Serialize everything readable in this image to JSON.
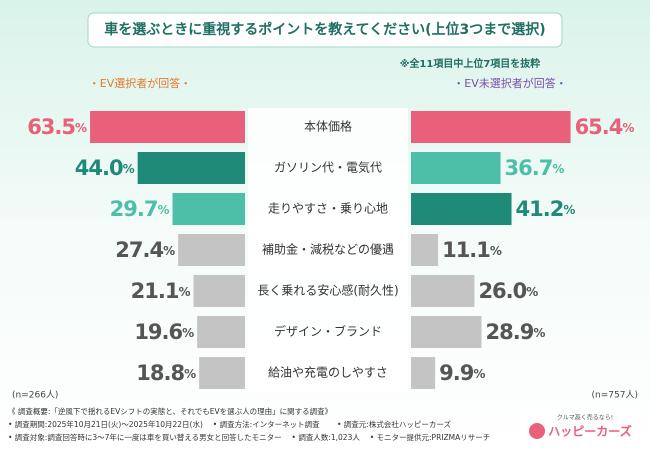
{
  "chart_data": {
    "type": "butterfly-bar",
    "title": "車を選ぶときに重視するポイントを教えてください(上位3つまで選択)",
    "subtitle": "※全11項目中上位7項目を抜粋",
    "categories": [
      "本体価格",
      "ガソリン代・電気代",
      "走りやすさ・乗り心地",
      "補助金・減税などの優遇",
      "長く乗れる安心感(耐久性)",
      "デザイン・ブランド",
      "給油や充電のしやすさ"
    ],
    "series": [
      {
        "name": "・EV選択者が回答・",
        "name_color": "#e07b2e",
        "sample_size": "(n=266人)",
        "values": [
          63.5,
          44.0,
          29.7,
          27.4,
          21.1,
          19.6,
          18.8
        ],
        "value_labels": [
          "63.5%",
          "44.0%",
          "29.7%",
          "27.4%",
          "21.1%",
          "19.6%",
          "18.8%"
        ],
        "colors": [
          "#e8607a",
          "#1f8a78",
          "#4dbfa8",
          "#c4c4c4",
          "#c4c4c4",
          "#c4c4c4",
          "#c4c4c4"
        ],
        "label_colors": [
          "#e8607a",
          "#1f8a78",
          "#4dbfa8",
          "#555555",
          "#555555",
          "#555555",
          "#555555"
        ]
      },
      {
        "name": "・EV未選択者が回答・",
        "name_color": "#7b4fa8",
        "sample_size": "(n=757人)",
        "values": [
          65.4,
          36.7,
          41.2,
          11.1,
          26.0,
          28.9,
          9.9
        ],
        "value_labels": [
          "65.4%",
          "36.7%",
          "41.2%",
          "11.1%",
          "26.0%",
          "28.9%",
          "9.9%"
        ],
        "colors": [
          "#e8607a",
          "#4dbfa8",
          "#1f8a78",
          "#c4c4c4",
          "#c4c4c4",
          "#c4c4c4",
          "#c4c4c4"
        ],
        "label_colors": [
          "#e8607a",
          "#4dbfa8",
          "#1f8a78",
          "#555555",
          "#555555",
          "#555555",
          "#555555"
        ]
      }
    ],
    "footnotes": [
      "《 調査概要:「逆風下で揺れるEVシフトの実態と、それでもEVを選ぶ人の理由」に関する調査》",
      "• 調査期間:2025年10月21日(火)〜2025年10月22日(水)　 • 調査方法:インターネット調査　　 • 調査元:株式会社ハッピーカーズ",
      "• 調査対象:調査回答時に3〜7年に一度は車を買い替える男女と回答したモニター　 • 調査人数:1,023人　 • モニター提供元:PRIZMAリサーチ"
    ],
    "logo": {
      "tagline": "クルマ高く売るなら!",
      "name": "ハッピーカーズ"
    }
  }
}
